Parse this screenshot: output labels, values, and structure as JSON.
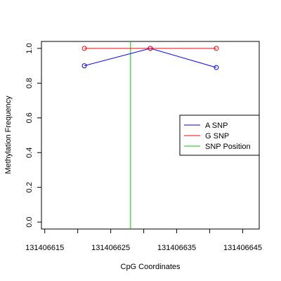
{
  "chart_data": {
    "type": "line",
    "title": "",
    "xlabel": "CpG Coordinates",
    "ylabel": "Methylation Frequency",
    "xlim": [
      131406614.5,
      131406647.5
    ],
    "ylim": [
      -0.04,
      1.04
    ],
    "x_ticks": [
      131406615,
      131406620,
      131406625,
      131406630,
      131406635,
      131406640,
      131406645
    ],
    "x_tick_labels": [
      {
        "value": 131406615,
        "label": "131406615"
      },
      {
        "value": 131406625,
        "label": "131406625"
      },
      {
        "value": 131406635,
        "label": "131406635"
      },
      {
        "value": 131406645,
        "label": "131406645"
      }
    ],
    "y_ticks": [
      {
        "value": 0.0,
        "label": "0.0"
      },
      {
        "value": 0.2,
        "label": "0.2"
      },
      {
        "value": 0.4,
        "label": "0.4"
      },
      {
        "value": 0.6,
        "label": "0.6"
      },
      {
        "value": 0.8,
        "label": "0.8"
      },
      {
        "value": 1.0,
        "label": "1.0"
      }
    ],
    "series": [
      {
        "name": "A SNP",
        "color": "#0000ff",
        "x": [
          131406621,
          131406631,
          131406641
        ],
        "y": [
          0.9,
          1.0,
          0.89
        ]
      },
      {
        "name": "G SNP",
        "color": "#ff0000",
        "x": [
          131406621,
          131406631,
          131406641
        ],
        "y": [
          1.0,
          1.0,
          1.0
        ]
      }
    ],
    "snp_position": {
      "name": "SNP Position",
      "color": "#00cc00",
      "x": 131406628
    },
    "legend": {
      "placement": "right",
      "entries": [
        {
          "label": "A SNP",
          "color": "#0000ff"
        },
        {
          "label": "G SNP",
          "color": "#ff0000"
        },
        {
          "label": "SNP Position",
          "color": "#00cc00"
        }
      ]
    },
    "grid": false
  }
}
